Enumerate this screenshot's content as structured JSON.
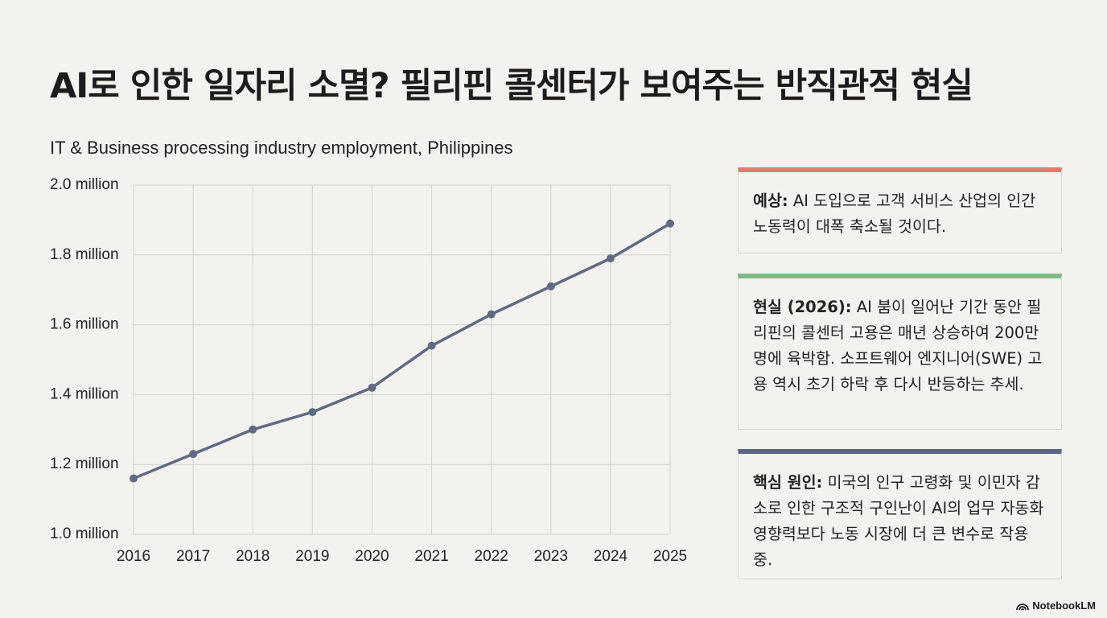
{
  "title": "AI로 인한 일자리 소멸? 필리핀 콜센터가 보여주는 반직관적 현실",
  "chart_data": {
    "type": "line",
    "title": "IT & Business processing industry employment, Philippines",
    "x": [
      2016,
      2017,
      2018,
      2019,
      2020,
      2021,
      2022,
      2023,
      2024,
      2025
    ],
    "values": [
      1.16,
      1.23,
      1.3,
      1.35,
      1.42,
      1.54,
      1.63,
      1.71,
      1.79,
      1.89
    ],
    "color": "#5f6a84",
    "xlim": [
      2016,
      2025
    ],
    "xticks": [
      2016,
      2017,
      2018,
      2019,
      2020,
      2021,
      2022,
      2023,
      2024,
      2025
    ],
    "ylim": [
      1.0,
      2.0
    ],
    "yticks": [
      {
        "value": 1.0,
        "label": "1.0 million"
      },
      {
        "value": 1.2,
        "label": "1.2 million"
      },
      {
        "value": 1.4,
        "label": "1.4 million"
      },
      {
        "value": 1.6,
        "label": "1.6 million"
      },
      {
        "value": 1.8,
        "label": "1.8 million"
      },
      {
        "value": 2.0,
        "label": "2.0 million"
      }
    ],
    "grid": true
  },
  "cards": [
    {
      "label": "예상:",
      "text": "AI 도입으로 고객 서비스 산업의 인간 노동력이 대폭 축소될 것이다.",
      "color": "#e07b74"
    },
    {
      "label": "현실 (2026):",
      "text": "AI 붐이 일어난 기간 동안 필리핀의 콜센터 고용은 매년 상승하여 200만 명에 육박함. 소프트웨어 엔지니어(SWE) 고용 역시 초기 하락 후 다시 반등하는 추세.",
      "color": "#7dbb85"
    },
    {
      "label": "핵심 원인:",
      "text": "미국의 인구 고령화 및 이민자 감소로 인한 구조적 구인난이 AI의 업무 자동화 영향력보다 노동 시장에 더 큰 변수로 작용 중.",
      "color": "#5b6680"
    }
  ],
  "branding": "NotebookLM"
}
